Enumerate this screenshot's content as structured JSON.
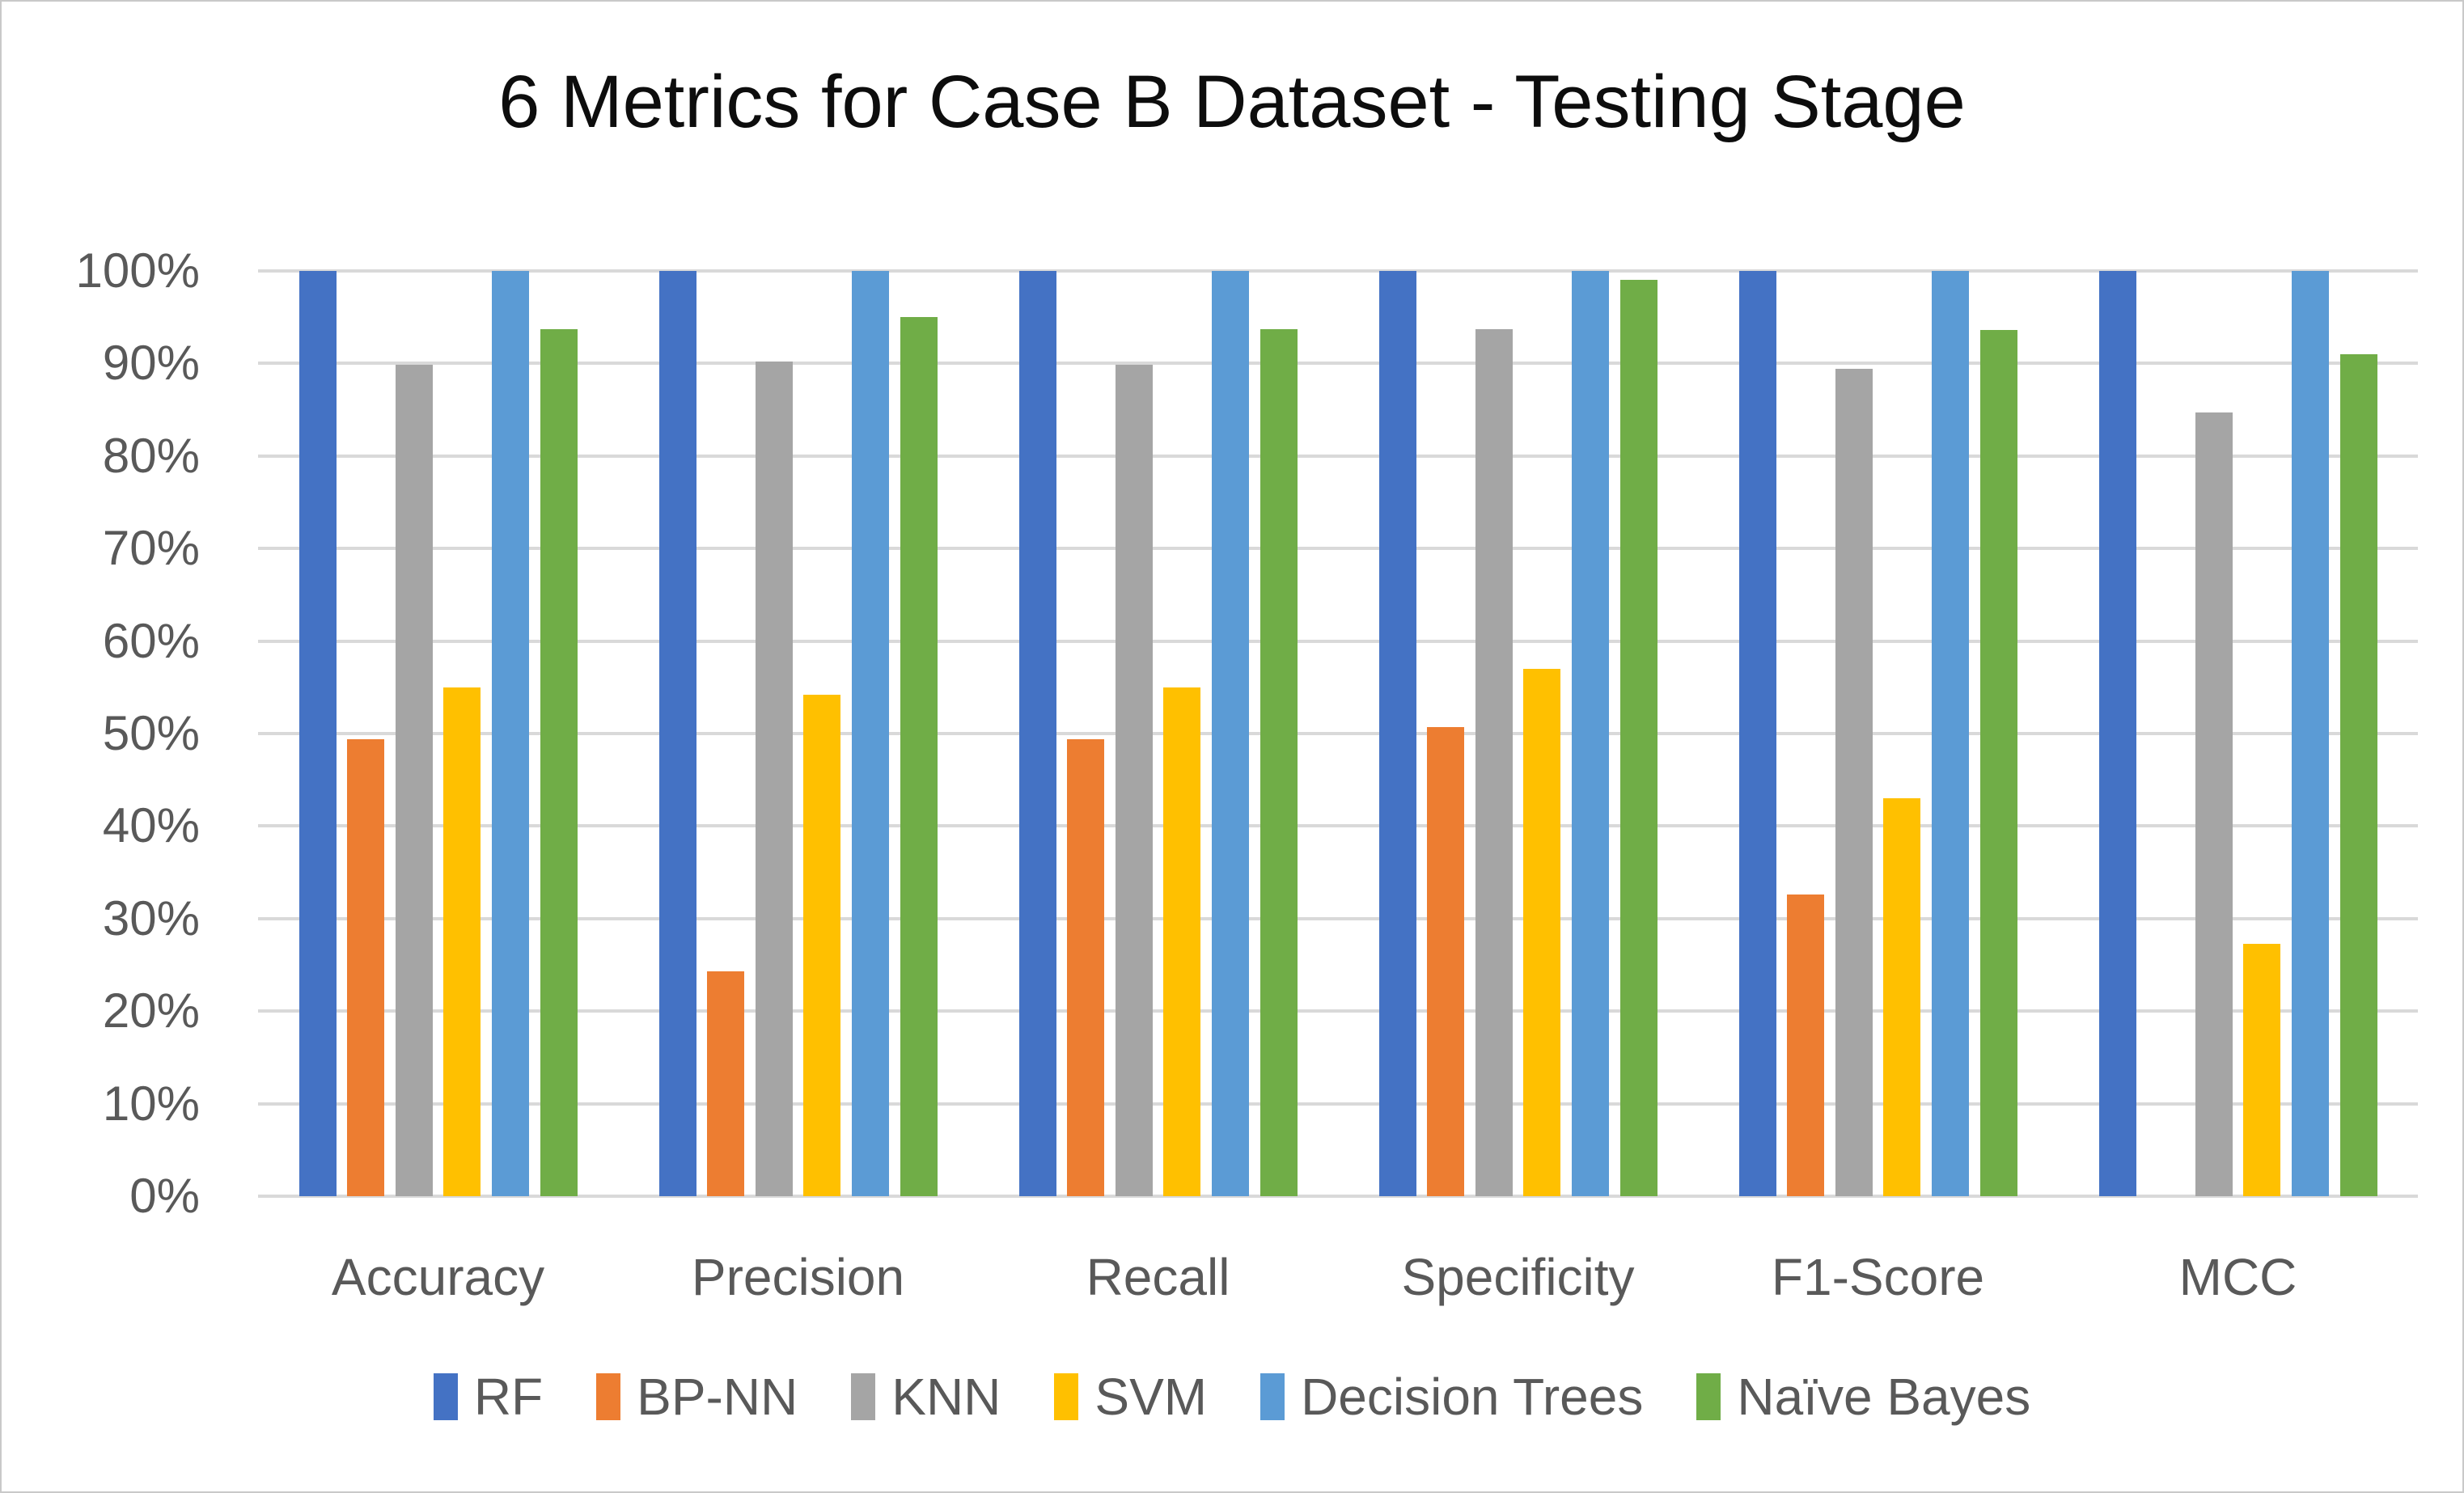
{
  "chart_data": {
    "type": "bar",
    "title": "6 Metrics for Case B Dataset - Testing Stage",
    "categories": [
      "Accuracy",
      "Precision",
      "Recall",
      "Specificity",
      "F1-Score",
      "MCC"
    ],
    "series": [
      {
        "name": "RF",
        "color": "#4472C4",
        "values": [
          100,
          100,
          100,
          100,
          100,
          100
        ]
      },
      {
        "name": "BP-NN",
        "color": "#ED7D31",
        "values": [
          49.4,
          24.3,
          49.4,
          50.7,
          32.6,
          0
        ]
      },
      {
        "name": "KNN",
        "color": "#A5A5A5",
        "values": [
          89.9,
          90.2,
          89.9,
          93.7,
          89.4,
          84.7
        ]
      },
      {
        "name": "SVM",
        "color": "#FFC000",
        "values": [
          55.0,
          54.2,
          55.0,
          57.0,
          43.0,
          27.3
        ]
      },
      {
        "name": "Decision Trees",
        "color": "#5B9BD5",
        "values": [
          100,
          100,
          100,
          100,
          100,
          100
        ]
      },
      {
        "name": "Naïve Bayes",
        "color": "#70AD47",
        "values": [
          93.7,
          95.0,
          93.7,
          99.0,
          93.6,
          91.0
        ]
      }
    ],
    "xlabel": "",
    "ylabel": "",
    "ylim": [
      0,
      100
    ],
    "ytick_step": 10,
    "ytick_labels": [
      "0%",
      "10%",
      "20%",
      "30%",
      "40%",
      "50%",
      "60%",
      "70%",
      "80%",
      "90%",
      "100%"
    ],
    "grid": true,
    "legend_position": "bottom"
  },
  "colors": {
    "gridline": "#d9d9d9",
    "axis_text": "#595959",
    "title_text": "#0d0d0d",
    "frame_border": "#c9c9c9",
    "background": "#ffffff"
  }
}
